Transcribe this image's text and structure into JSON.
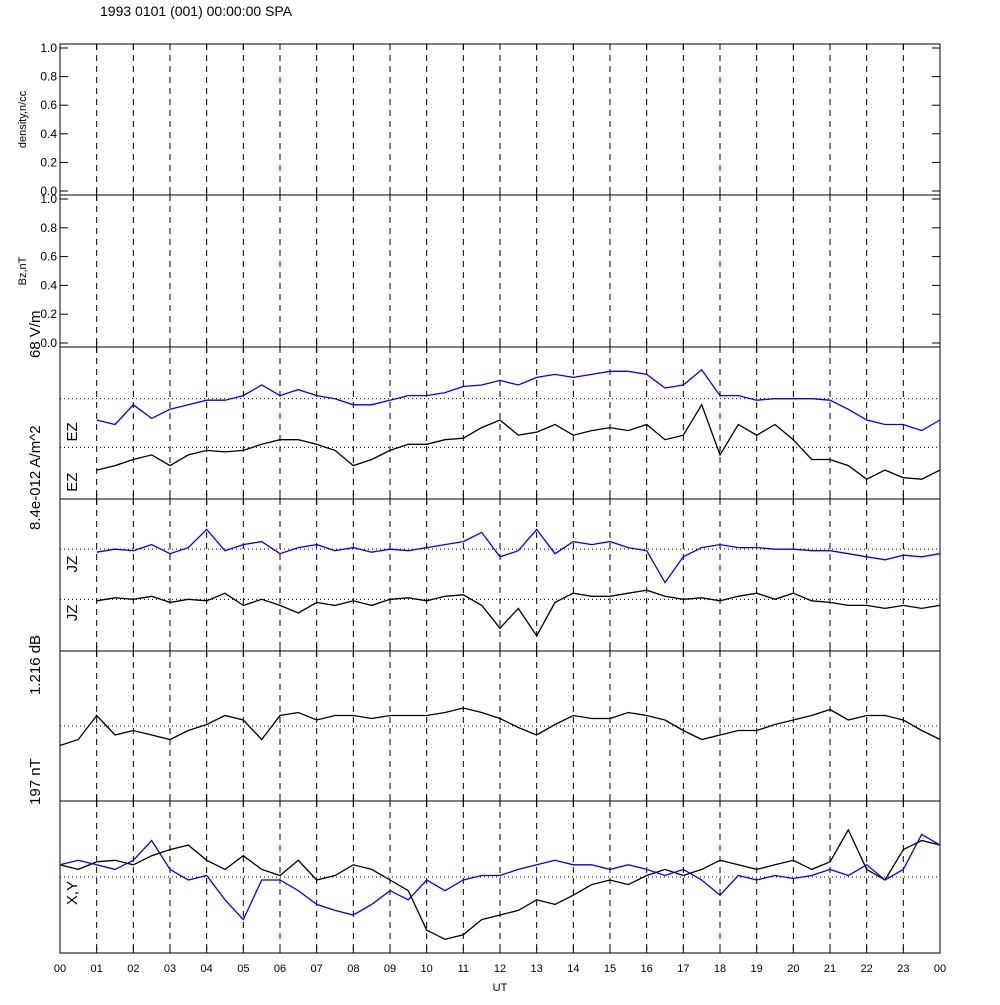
{
  "chart_data": [
    {
      "type": "line",
      "title": "1993 0101 (001) 00:00:00 SPA",
      "ylabel": "density,n/cc",
      "xlim": [
        0,
        24
      ],
      "ylim": [
        0,
        1
      ],
      "yticks": [
        {
          "value": 0,
          "label": "0.0"
        },
        0.2,
        0.4,
        0.6,
        0.8,
        {
          "value": 1,
          "label": "1.0"
        }
      ]
    },
    {
      "type": "line",
      "ylabel": "Bz,nT",
      "xlim": [
        0,
        24
      ],
      "ylim": [
        0,
        1
      ],
      "yticks": [
        {
          "value": 0,
          "label": "0.0"
        },
        0.2,
        0.4,
        0.6,
        0.8,
        {
          "value": 1,
          "label": "1.0"
        }
      ]
    },
    {
      "type": "line",
      "ylabel": "68 V/m",
      "xlim": [
        0,
        24
      ],
      "ylim": [
        0,
        1
      ],
      "reflines": [
        0.34,
        0.66
      ],
      "x": [
        0,
        0.5,
        1,
        1.5,
        2,
        2.5,
        3,
        3.5,
        4,
        4.5,
        5,
        5.5,
        6,
        6.5,
        7,
        7.5,
        8,
        8.5,
        9,
        9.5,
        10,
        10.5,
        11,
        11.5,
        12,
        12.5,
        13,
        13.5,
        14,
        14.5,
        15,
        15.5,
        16,
        16.5,
        17,
        17.5,
        18,
        18.5,
        19,
        19.5,
        20,
        20.5,
        21,
        21.5,
        22,
        22.5,
        23,
        23.5,
        24
      ],
      "series": [
        {
          "name": "EZ",
          "color": "#0000ff",
          "values": [
            null,
            null,
            0.52,
            0.49,
            0.62,
            0.53,
            0.59,
            0.62,
            0.65,
            0.65,
            0.68,
            0.75,
            0.68,
            0.72,
            0.68,
            0.66,
            0.62,
            0.62,
            0.65,
            0.68,
            0.68,
            0.7,
            0.74,
            0.75,
            0.78,
            0.75,
            0.8,
            0.82,
            0.8,
            0.82,
            0.84,
            0.84,
            0.82,
            0.73,
            0.75,
            0.85,
            0.68,
            0.68,
            0.65,
            0.66,
            0.66,
            0.66,
            0.65,
            0.59,
            0.52,
            0.49,
            0.49,
            0.45,
            0.52
          ]
        },
        {
          "name": "EZ",
          "color": "#000000",
          "values": [
            null,
            null,
            0.19,
            0.22,
            0.26,
            0.29,
            0.22,
            0.29,
            0.32,
            0.31,
            0.32,
            0.36,
            0.39,
            0.39,
            0.36,
            0.32,
            0.22,
            0.26,
            0.32,
            0.36,
            0.36,
            0.39,
            0.4,
            0.47,
            0.52,
            0.42,
            0.44,
            0.49,
            0.42,
            0.45,
            0.47,
            0.45,
            0.49,
            0.39,
            0.42,
            0.62,
            0.29,
            0.49,
            0.42,
            0.49,
            0.39,
            0.26,
            0.26,
            0.22,
            0.13,
            0.19,
            0.14,
            0.13,
            0.19
          ]
        }
      ]
    },
    {
      "type": "line",
      "ylabel": "8.4e-012 A/m^2",
      "xlim": [
        0,
        24
      ],
      "ylim": [
        0,
        1
      ],
      "reflines": [
        0.34,
        0.67
      ],
      "x": [
        0,
        0.5,
        1,
        1.5,
        2,
        2.5,
        3,
        3.5,
        4,
        4.5,
        5,
        5.5,
        6,
        6.5,
        7,
        7.5,
        8,
        8.5,
        9,
        9.5,
        10,
        10.5,
        11,
        11.5,
        12,
        12.5,
        13,
        13.5,
        14,
        14.5,
        15,
        15.5,
        16,
        16.5,
        17,
        17.5,
        18,
        18.5,
        19,
        19.5,
        20,
        20.5,
        21,
        21.5,
        22,
        22.5,
        23,
        23.5,
        24
      ],
      "series": [
        {
          "name": "JZ",
          "color": "#0000ff",
          "values": [
            null,
            null,
            0.65,
            0.67,
            0.66,
            0.7,
            0.64,
            0.68,
            0.8,
            0.66,
            0.7,
            0.72,
            0.64,
            0.68,
            0.7,
            0.66,
            0.68,
            0.65,
            0.67,
            0.66,
            0.68,
            0.7,
            0.72,
            0.78,
            0.62,
            0.66,
            0.8,
            0.64,
            0.72,
            0.7,
            0.72,
            0.68,
            0.66,
            0.45,
            0.62,
            0.68,
            0.7,
            0.68,
            0.68,
            0.67,
            0.67,
            0.66,
            0.66,
            0.64,
            0.62,
            0.6,
            0.63,
            0.62,
            0.64
          ]
        },
        {
          "name": "JZ",
          "color": "#000000",
          "values": [
            null,
            null,
            0.33,
            0.35,
            0.34,
            0.36,
            0.32,
            0.34,
            0.33,
            0.38,
            0.3,
            0.34,
            0.3,
            0.25,
            0.32,
            0.3,
            0.33,
            0.3,
            0.34,
            0.35,
            0.33,
            0.36,
            0.37,
            0.3,
            0.15,
            0.28,
            0.1,
            0.32,
            0.38,
            0.36,
            0.36,
            0.38,
            0.4,
            0.36,
            0.34,
            0.35,
            0.33,
            0.36,
            0.38,
            0.34,
            0.38,
            0.33,
            0.32,
            0.3,
            0.3,
            0.28,
            0.3,
            0.28,
            0.3
          ]
        }
      ]
    },
    {
      "type": "line",
      "ylabel": "1.216 dB",
      "xlim": [
        0,
        24
      ],
      "ylim": [
        0,
        1
      ],
      "reflines": [
        0.5
      ],
      "x": [
        0,
        0.5,
        1,
        1.5,
        2,
        2.5,
        3,
        3.5,
        4,
        4.5,
        5,
        5.5,
        6,
        6.5,
        7,
        7.5,
        8,
        8.5,
        9,
        9.5,
        10,
        10.5,
        11,
        11.5,
        12,
        12.5,
        13,
        13.5,
        14,
        14.5,
        15,
        15.5,
        16,
        16.5,
        17,
        17.5,
        18,
        18.5,
        19,
        19.5,
        20,
        20.5,
        21,
        21.5,
        22,
        22.5,
        23,
        23.5,
        24
      ],
      "series": [
        {
          "color": "#000000",
          "values": [
            0.37,
            0.41,
            0.57,
            0.44,
            0.47,
            0.44,
            0.41,
            0.47,
            0.51,
            0.57,
            0.54,
            0.41,
            0.57,
            0.59,
            0.54,
            0.57,
            0.57,
            0.55,
            0.57,
            0.57,
            0.57,
            0.59,
            0.62,
            0.59,
            0.55,
            0.49,
            0.44,
            0.51,
            0.57,
            0.55,
            0.55,
            0.59,
            0.57,
            0.54,
            0.47,
            0.41,
            0.44,
            0.47,
            0.47,
            0.51,
            0.54,
            0.57,
            0.61,
            0.54,
            0.57,
            0.57,
            0.54,
            0.47,
            0.41
          ]
        }
      ]
    },
    {
      "type": "line",
      "ylabel": "197 nT",
      "annotation": "X,Y",
      "xlabel": "UT",
      "xlim": [
        0,
        24
      ],
      "ylim": [
        0,
        1
      ],
      "reflines": [
        0.5
      ],
      "xticks": [
        {
          "value": 0,
          "label": "00"
        },
        {
          "value": 1,
          "label": "01"
        },
        {
          "value": 2,
          "label": "02"
        },
        {
          "value": 3,
          "label": "03"
        },
        {
          "value": 4,
          "label": "04"
        },
        {
          "value": 5,
          "label": "05"
        },
        {
          "value": 6,
          "label": "06"
        },
        {
          "value": 7,
          "label": "07"
        },
        {
          "value": 8,
          "label": "08"
        },
        {
          "value": 9,
          "label": "09"
        },
        {
          "value": 10,
          "label": "10"
        },
        {
          "value": 11,
          "label": "11"
        },
        {
          "value": 12,
          "label": "12"
        },
        {
          "value": 13,
          "label": "13"
        },
        {
          "value": 14,
          "label": "14"
        },
        {
          "value": 15,
          "label": "15"
        },
        {
          "value": 16,
          "label": "16"
        },
        {
          "value": 17,
          "label": "17"
        },
        {
          "value": 18,
          "label": "18"
        },
        {
          "value": 19,
          "label": "19"
        },
        {
          "value": 20,
          "label": "20"
        },
        {
          "value": 21,
          "label": "21"
        },
        {
          "value": 22,
          "label": "22"
        },
        {
          "value": 23,
          "label": "23"
        },
        {
          "value": 24,
          "label": "00"
        }
      ],
      "x": [
        0,
        0.5,
        1,
        1.5,
        2,
        2.5,
        3,
        3.5,
        4,
        4.5,
        5,
        5.5,
        6,
        6.5,
        7,
        7.5,
        8,
        8.5,
        9,
        9.5,
        10,
        10.5,
        11,
        11.5,
        12,
        12.5,
        13,
        13.5,
        14,
        14.5,
        15,
        15.5,
        16,
        16.5,
        17,
        17.5,
        18,
        18.5,
        19,
        19.5,
        20,
        20.5,
        21,
        21.5,
        22,
        22.5,
        23,
        23.5,
        24
      ],
      "series": [
        {
          "color": "#000000",
          "values": [
            0.58,
            0.55,
            0.6,
            0.61,
            0.58,
            0.64,
            0.68,
            0.71,
            0.61,
            0.55,
            0.64,
            0.55,
            0.51,
            0.61,
            0.48,
            0.51,
            0.58,
            0.55,
            0.48,
            0.41,
            0.15,
            0.09,
            0.12,
            0.22,
            0.25,
            0.28,
            0.35,
            0.32,
            0.38,
            0.45,
            0.48,
            0.45,
            0.51,
            0.55,
            0.51,
            0.55,
            0.61,
            0.58,
            0.55,
            0.58,
            0.61,
            0.55,
            0.6,
            0.81,
            0.55,
            0.48,
            0.68,
            0.74,
            0.71
          ]
        },
        {
          "color": "#0000ff",
          "values": [
            0.58,
            0.61,
            0.58,
            0.55,
            0.61,
            0.74,
            0.55,
            0.48,
            0.51,
            0.35,
            0.22,
            0.48,
            0.48,
            0.41,
            0.32,
            0.28,
            0.25,
            0.32,
            0.41,
            0.35,
            0.48,
            0.41,
            0.48,
            0.51,
            0.51,
            0.55,
            0.58,
            0.61,
            0.58,
            0.58,
            0.55,
            0.58,
            0.55,
            0.51,
            0.55,
            0.48,
            0.38,
            0.51,
            0.48,
            0.51,
            0.49,
            0.51,
            0.55,
            0.51,
            0.58,
            0.48,
            0.55,
            0.78,
            0.71
          ]
        }
      ]
    }
  ]
}
